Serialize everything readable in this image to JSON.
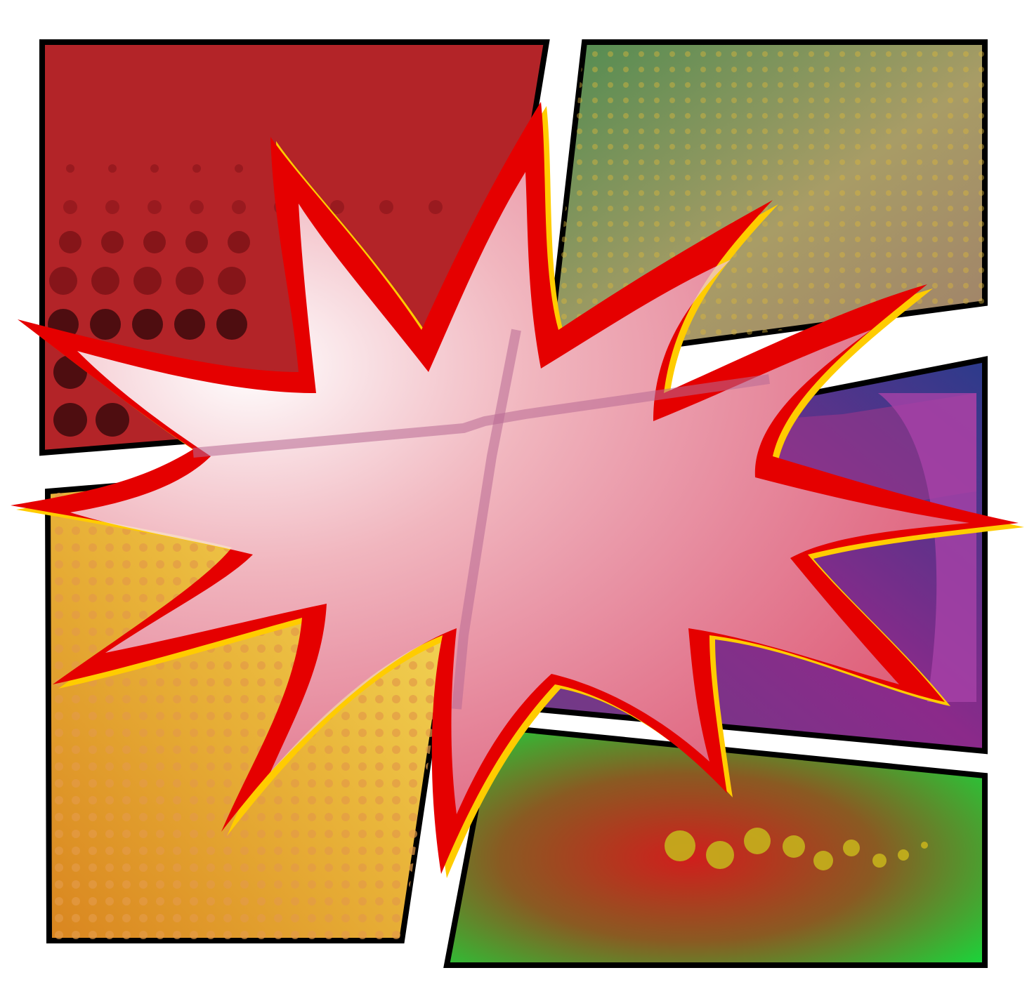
{
  "artwork": {
    "kind": "comic-book-panels-with-explosion-burst",
    "panel_count": 5,
    "colors": {
      "border": "#000000",
      "background": "#ffffff",
      "panel_top_left": "#b32428",
      "panel_top_right_from": "#5a8b55",
      "panel_top_right_to": "#a8916c",
      "panel_bottom_left_from": "#e08a22",
      "panel_bottom_left_to": "#f5e05a",
      "panel_middle_right_from": "#7a2f8e",
      "panel_middle_right_to": "#a63ea8",
      "panel_bottom_right_from": "#c8281e",
      "panel_bottom_right_to": "#18d23a",
      "burst_outline": "#e50000",
      "burst_shadow": "#ffcc00",
      "burst_fill": "#ffffff"
    },
    "icons": [
      "explosion-burst-icon",
      "halftone-dots-icon"
    ]
  }
}
